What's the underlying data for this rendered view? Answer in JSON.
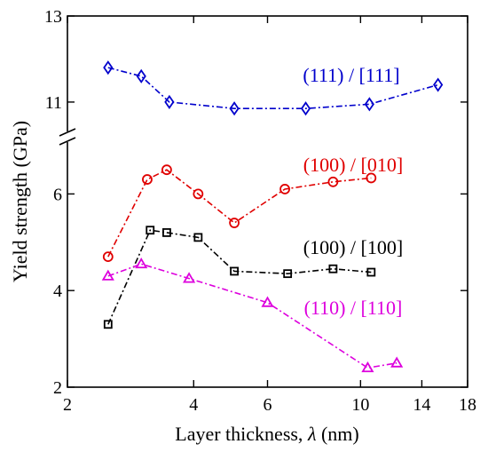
{
  "chart_data": {
    "type": "line",
    "xlabel_text": "Layer thickness, ",
    "xlabel_symbol": "λ",
    "xlabel_unit": " (nm)",
    "ylabel": "Yield strength (GPa)",
    "x_scale": "log",
    "xlim": [
      2,
      18
    ],
    "x_ticks": [
      2,
      4,
      6,
      10,
      14,
      18
    ],
    "x_tick_labels": [
      "2",
      "4",
      "6",
      "10",
      "14",
      "18"
    ],
    "y_axis_broken": true,
    "y_lower_range": [
      2,
      7
    ],
    "y_upper_range": [
      10.4,
      13
    ],
    "y_tick_labels": [
      "2",
      "4",
      "6",
      "11",
      "13"
    ],
    "y_ticks": [
      2,
      4,
      6,
      11,
      13
    ],
    "grid": false,
    "legend": "inline labels",
    "series": [
      {
        "name": "(111) / [111]",
        "color": "#0000cc",
        "marker": "diamond",
        "x": [
          2.5,
          3.0,
          3.5,
          5.0,
          7.4,
          10.5,
          15.3
        ],
        "y": [
          11.8,
          11.6,
          11.0,
          10.85,
          10.85,
          10.95,
          11.4
        ]
      },
      {
        "name": "(100) / [010]",
        "color": "#e00000",
        "marker": "circle",
        "x": [
          2.5,
          3.1,
          3.45,
          4.1,
          5.0,
          6.6,
          8.6,
          10.6
        ],
        "y": [
          4.7,
          6.3,
          6.5,
          6.0,
          5.4,
          6.1,
          6.25,
          6.33
        ]
      },
      {
        "name": "(100) / [100]",
        "color": "#000000",
        "marker": "square",
        "x": [
          2.5,
          3.15,
          3.45,
          4.1,
          5.0,
          6.7,
          8.6,
          10.6
        ],
        "y": [
          3.3,
          5.25,
          5.2,
          5.1,
          4.4,
          4.35,
          4.45,
          4.38
        ]
      },
      {
        "name": "(110) / [110]",
        "color": "#dd00dd",
        "marker": "triangle",
        "x": [
          2.5,
          3.0,
          3.9,
          6.0,
          10.4,
          12.2
        ],
        "y": [
          4.3,
          4.55,
          4.25,
          3.75,
          2.4,
          2.5
        ]
      }
    ]
  }
}
